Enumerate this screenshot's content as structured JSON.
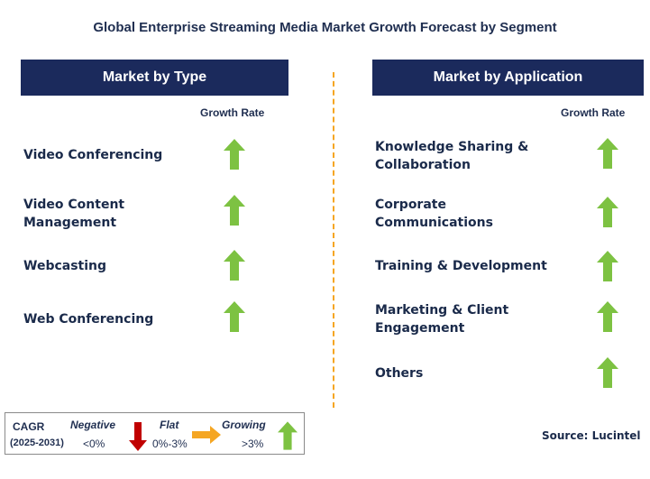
{
  "title": "Global Enterprise Streaming Media Market Growth Forecast by Segment",
  "left_panel": {
    "header": "Market by Type",
    "column_label": "Growth Rate",
    "items": [
      {
        "label_lines": [
          "Video Conferencing"
        ],
        "trend": "growing"
      },
      {
        "label_lines": [
          "Video Content",
          "Management"
        ],
        "trend": "growing"
      },
      {
        "label_lines": [
          "Webcasting"
        ],
        "trend": "growing"
      },
      {
        "label_lines": [
          "Web Conferencing"
        ],
        "trend": "growing"
      }
    ]
  },
  "right_panel": {
    "header": "Market by Application",
    "column_label": "Growth Rate",
    "items": [
      {
        "label_lines": [
          "Knowledge Sharing &",
          "Collaboration"
        ],
        "trend": "growing"
      },
      {
        "label_lines": [
          "Corporate",
          "Communications"
        ],
        "trend": "growing"
      },
      {
        "label_lines": [
          "Training & Development"
        ],
        "trend": "growing"
      },
      {
        "label_lines": [
          "Marketing & Client",
          "Engagement"
        ],
        "trend": "growing"
      },
      {
        "label_lines": [
          "Others"
        ],
        "trend": "growing"
      }
    ]
  },
  "legend": {
    "cagr_label": "CAGR",
    "period": "(2025-2031)",
    "negative": {
      "label": "Negative",
      "range": "<0%"
    },
    "flat": {
      "label": "Flat",
      "range": "0%-3%"
    },
    "growing": {
      "label": "Growing",
      "range": ">3%"
    }
  },
  "source": "Source: Lucintel",
  "colors": {
    "header_bg": "#1b2a5c",
    "growing_arrow": "#7dc242",
    "negative_arrow": "#c00000",
    "flat_arrow": "#f5a623",
    "divider": "#f5a623"
  },
  "icons": {
    "growing": "up-arrow-icon",
    "negative": "down-arrow-icon",
    "flat": "right-arrow-icon"
  }
}
